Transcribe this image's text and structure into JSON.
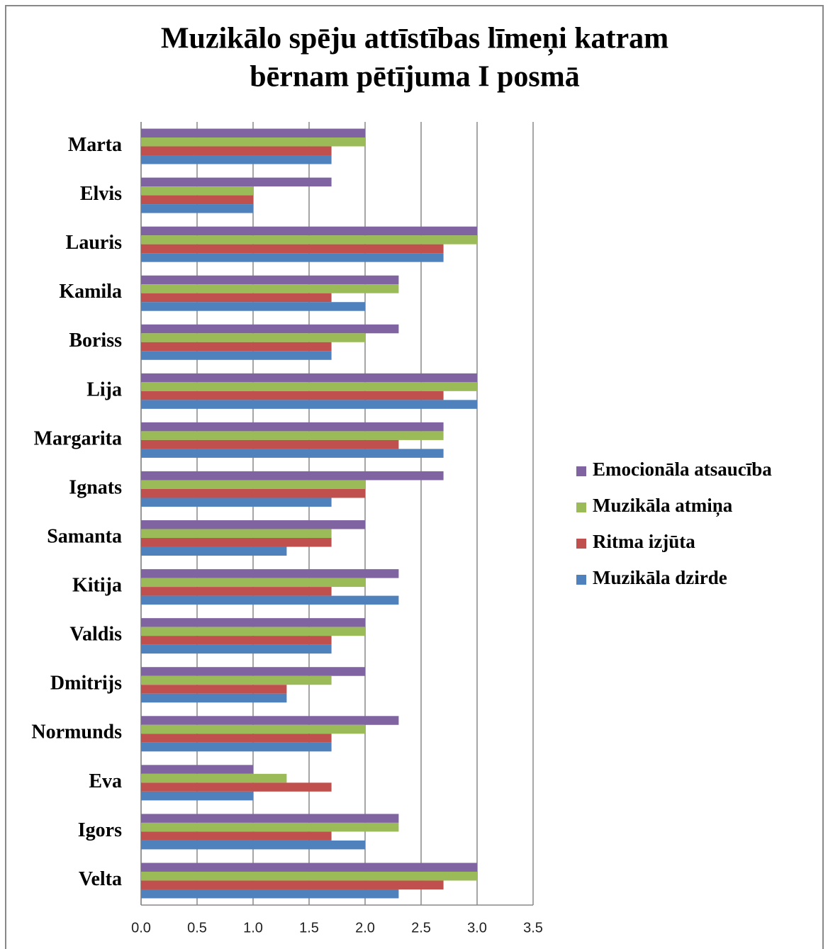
{
  "chart_data": {
    "type": "bar",
    "orientation": "horizontal",
    "title": "Muzikālo spēju attīstības līmeņi katram bērnam pētījuma I posmā",
    "title_lines": [
      "Muzikālo spēju attīstības līmeņi katram",
      "bērnam pētījuma I posmā"
    ],
    "categories": [
      "Marta",
      "Elvis",
      "Lauris",
      "Kamila",
      "Boriss",
      "Lija",
      "Margarita",
      "Ignats",
      "Samanta",
      "Kitija",
      "Valdis",
      "Dmitrijs",
      "Normunds",
      "Eva",
      "Igors",
      "Velta"
    ],
    "series": [
      {
        "name": "Emocionāla atsaucība",
        "color": "#8064a2",
        "values": [
          2.0,
          1.7,
          3.0,
          2.3,
          2.3,
          3.0,
          2.7,
          2.7,
          2.0,
          2.3,
          2.0,
          2.0,
          2.3,
          1.0,
          2.3,
          3.0
        ]
      },
      {
        "name": "Muzikāla atmiņa",
        "color": "#9bbb59",
        "values": [
          2.0,
          1.0,
          3.0,
          2.3,
          2.0,
          3.0,
          2.7,
          2.0,
          1.7,
          2.0,
          2.0,
          1.7,
          2.0,
          1.3,
          2.3,
          3.0
        ]
      },
      {
        "name": "Ritma izjūta",
        "color": "#c0504d",
        "values": [
          1.7,
          1.0,
          2.7,
          1.7,
          1.7,
          2.7,
          2.3,
          2.0,
          1.7,
          1.7,
          1.7,
          1.3,
          1.7,
          1.7,
          1.7,
          2.7
        ]
      },
      {
        "name": "Muzikāla dzirde",
        "color": "#4f81bd",
        "values": [
          1.7,
          1.0,
          2.7,
          2.0,
          1.7,
          3.0,
          2.7,
          1.7,
          1.3,
          2.3,
          1.7,
          1.3,
          1.7,
          1.0,
          2.0,
          2.3
        ]
      }
    ],
    "xlim": [
      0,
      3.5
    ],
    "xticks": [
      {
        "value": 0,
        "label": "0.0"
      },
      0.5,
      {
        "value": 1,
        "label": "1.0"
      },
      1.5,
      {
        "value": 2,
        "label": "2.0"
      },
      2.5,
      {
        "value": 3,
        "label": "3.0"
      },
      3.5
    ],
    "grid": true,
    "legend": "right"
  }
}
